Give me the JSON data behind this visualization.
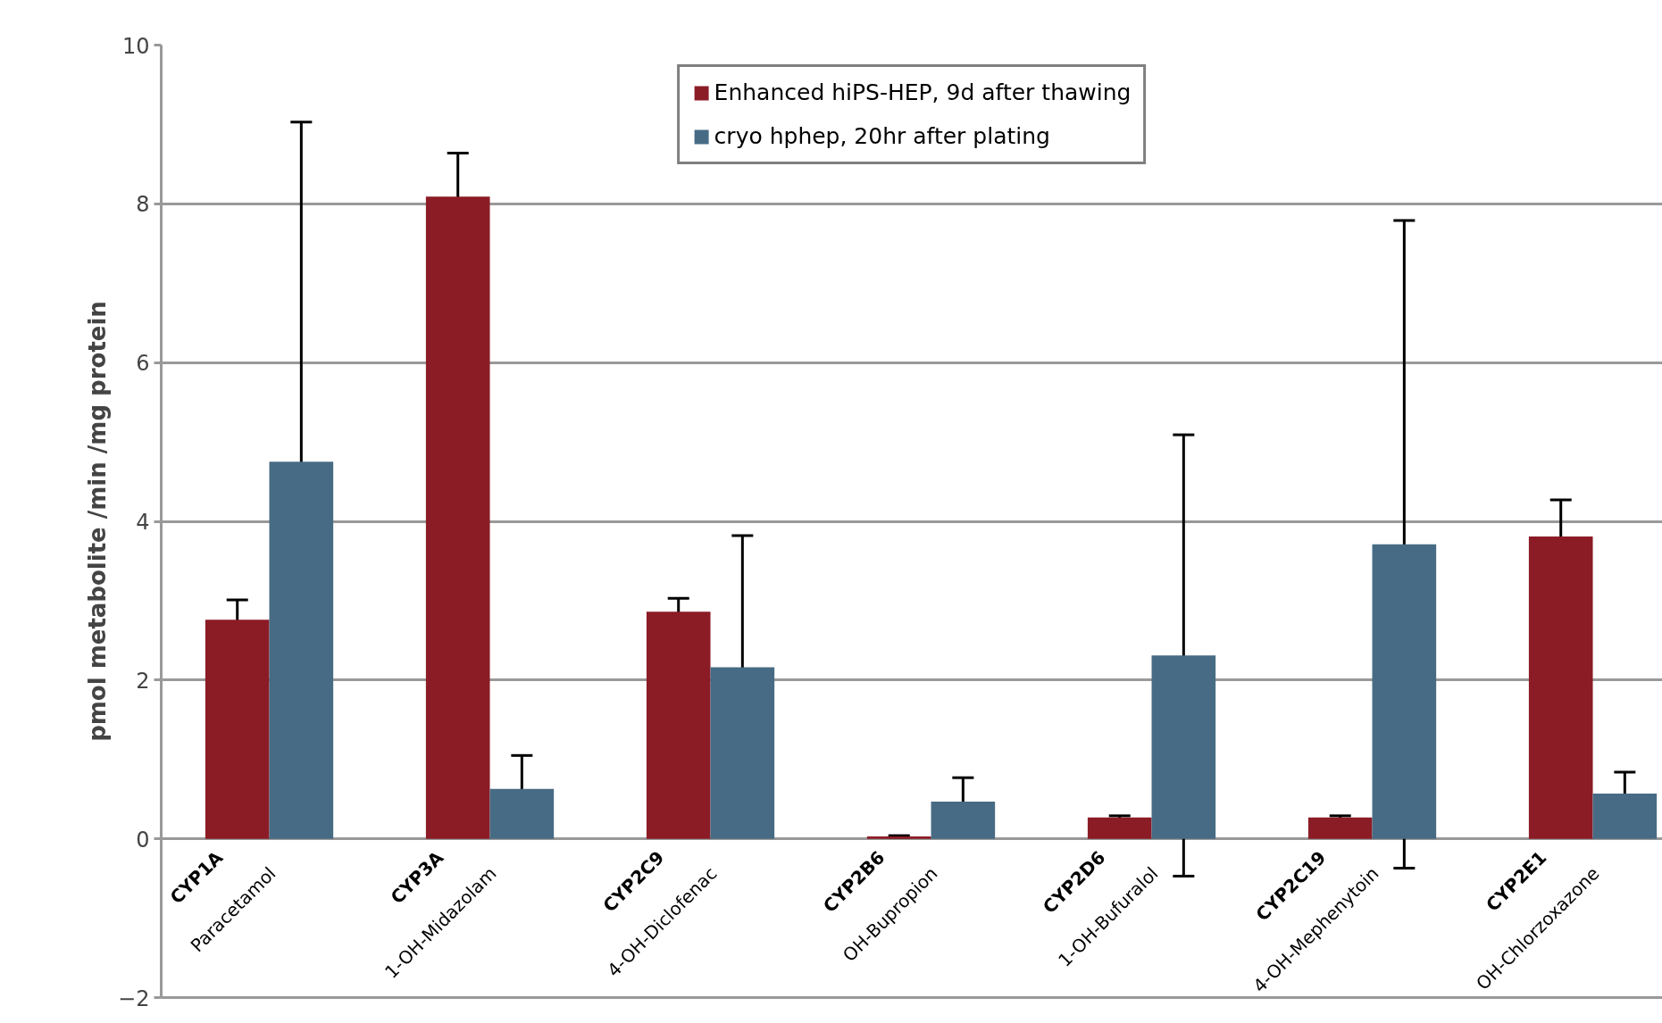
{
  "chart_data": {
    "type": "bar",
    "ylabel": "pmol metabolite /min /mg protein",
    "categories": [
      "CYP1A\nParacetamol",
      "CYP3A\n1-OH-Midazolam",
      "CYP2C9\n4-OH-Diclofenac",
      "CYP2B6\nOH-Bupropion",
      "CYP2D6\n1-OH-Bufuralol",
      "CYP2C19\n4-OH-Mephenytoin",
      "CYP2E1\nOH-Chlorzoxazone"
    ],
    "series": [
      {
        "name": "Enhanced hiPS-HEP, 9d after thawing",
        "color": "#8b1c26",
        "values": [
          2.76,
          8.09,
          2.86,
          0.03,
          0.27,
          0.27,
          3.81
        ],
        "errors": [
          0.25,
          0.55,
          0.17,
          0.01,
          0.02,
          0.02,
          0.46
        ]
      },
      {
        "name": "cryo hphep, 20hr after plating",
        "color": "#476b84",
        "values": [
          4.75,
          0.63,
          2.16,
          0.47,
          2.31,
          3.71,
          0.57
        ],
        "errors": [
          4.28,
          0.42,
          1.66,
          0.3,
          2.78,
          4.08,
          0.27
        ]
      }
    ],
    "ylim": [
      -2,
      10
    ],
    "yticks": [
      -2,
      0,
      2,
      4,
      6,
      8,
      10
    ],
    "grid": "y",
    "legend": "top"
  }
}
